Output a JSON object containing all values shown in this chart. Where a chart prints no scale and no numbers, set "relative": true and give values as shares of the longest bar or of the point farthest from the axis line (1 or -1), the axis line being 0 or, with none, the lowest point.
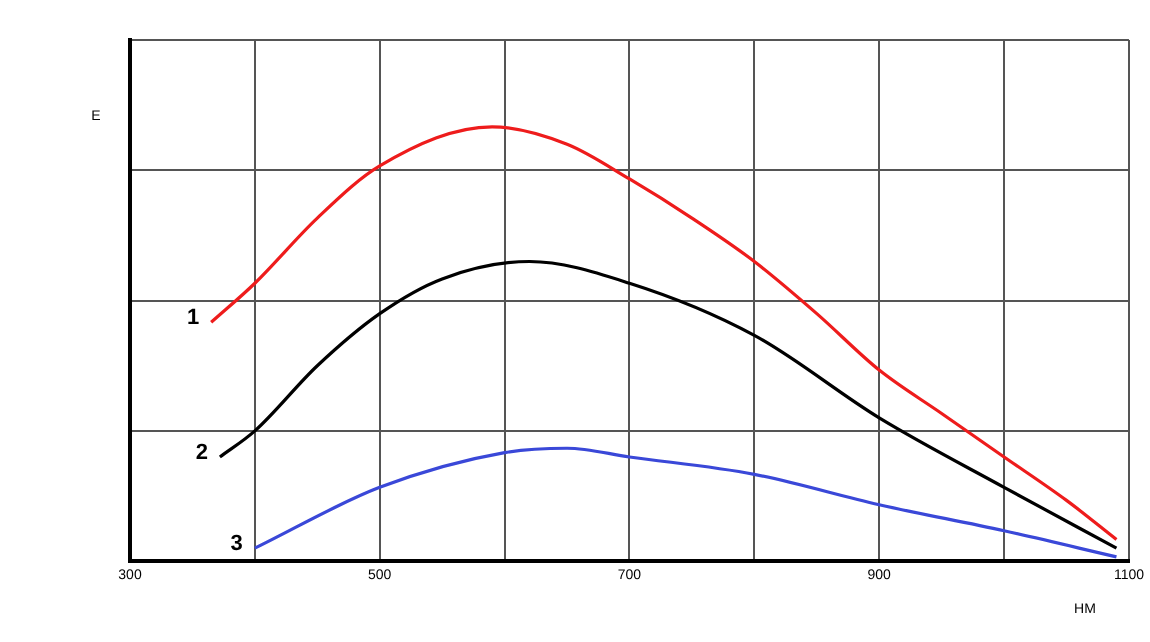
{
  "chart_data": {
    "type": "line",
    "relative": true,
    "xlabel": "HM",
    "ylabel": "E",
    "xlim": [
      300,
      1100
    ],
    "xticks": [
      300,
      {
        "value": 400,
        "label": null
      },
      500,
      {
        "value": 600,
        "label": null
      },
      700,
      {
        "value": 800,
        "label": null
      },
      900,
      {
        "value": 1000,
        "label": null
      },
      1100
    ],
    "grid": true,
    "legend": false,
    "marker": "none",
    "line_style": "solid",
    "series": [
      {
        "name": "1",
        "color": "#ee1c1c",
        "x": [
          365,
          400,
          450,
          500,
          590,
          650,
          700,
          750,
          800,
          850,
          900,
          950,
          1000,
          1050,
          1090
        ],
        "values": [
          0.55,
          0.64,
          0.79,
          0.91,
          1.0,
          0.96,
          0.88,
          0.79,
          0.69,
          0.57,
          0.44,
          0.34,
          0.24,
          0.14,
          0.05
        ]
      },
      {
        "name": "2",
        "color": "#000000",
        "x": [
          372,
          400,
          450,
          500,
          550,
          620,
          700,
          800,
          900,
          1000,
          1090
        ],
        "values": [
          0.24,
          0.3,
          0.45,
          0.57,
          0.65,
          0.69,
          0.64,
          0.52,
          0.33,
          0.17,
          0.03
        ]
      },
      {
        "name": "3",
        "color": "#3a48d8",
        "x": [
          400,
          500,
          600,
          650,
          700,
          800,
          900,
          1000,
          1090
        ],
        "values": [
          0.03,
          0.17,
          0.25,
          0.26,
          0.24,
          0.2,
          0.13,
          0.07,
          0.01
        ]
      }
    ]
  }
}
